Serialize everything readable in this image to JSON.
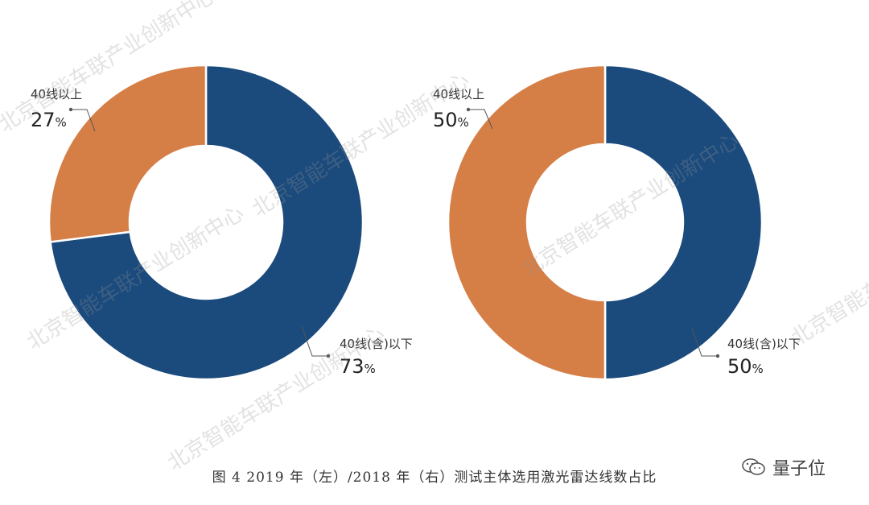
{
  "chart_data": [
    {
      "type": "pie",
      "categories": [
        "40线(含)以下",
        "40线以上"
      ],
      "values": [
        73,
        27
      ],
      "percent_labels": [
        "73",
        "27"
      ],
      "colors": [
        "#1b4a7c",
        "#d57f47"
      ]
    },
    {
      "type": "pie",
      "categories": [
        "40线(含)以下",
        "40线以上"
      ],
      "values": [
        50,
        50
      ],
      "percent_labels": [
        "50",
        "50"
      ],
      "colors": [
        "#1b4a7c",
        "#d57f47"
      ]
    }
  ],
  "percent_symbol": "%",
  "watermark_text": "北京智能车联产业创新中心",
  "caption": "图 4 2019 年（左）/2018 年（右）测试主体选用激光雷达线数占比",
  "brand": {
    "name": "量子位",
    "icon": "wechat-icon"
  }
}
